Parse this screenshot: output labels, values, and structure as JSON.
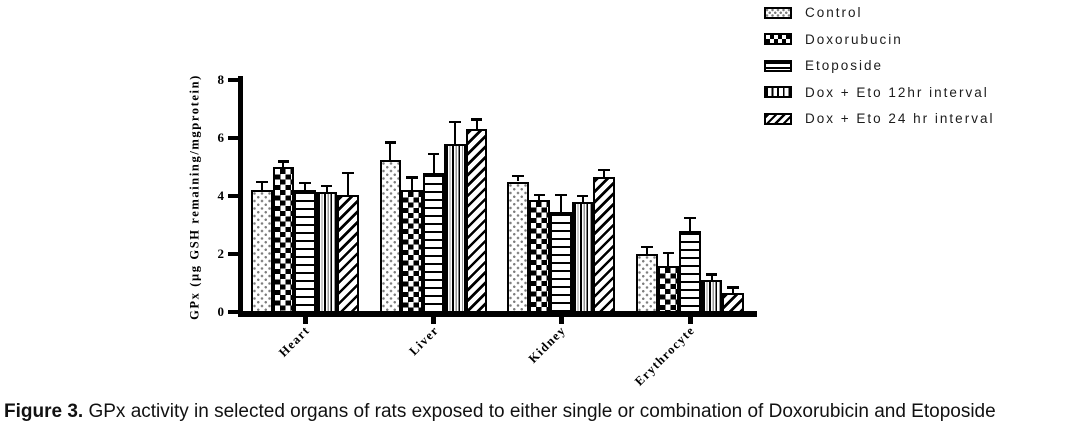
{
  "figure": {
    "caption_prefix": "Figure 3.",
    "caption_text": "GPx activity in selected organs of rats exposed to either single or combination of Doxorubicin and Etoposide"
  },
  "chart_data": {
    "type": "bar",
    "title": "",
    "xlabel": "",
    "ylabel": "GPx (µg GSH remaining/mgprotein)",
    "ylim": [
      0,
      8
    ],
    "yticks": [
      0,
      2,
      4,
      6,
      8
    ],
    "grid": false,
    "legend_position": "top-right",
    "error_bars": "upper",
    "categories": [
      "Heart",
      "Liver",
      "Kidney",
      "Erythrocyte"
    ],
    "series": [
      {
        "name": "Control",
        "pattern": "dots",
        "values": [
          4.2,
          5.25,
          4.5,
          2.0
        ],
        "errors": [
          0.3,
          0.6,
          0.2,
          0.25
        ]
      },
      {
        "name": "Doxorubucin",
        "pattern": "checker",
        "values": [
          5.0,
          4.2,
          3.85,
          1.6
        ],
        "errors": [
          0.2,
          0.45,
          0.2,
          0.45
        ]
      },
      {
        "name": "Etoposide",
        "pattern": "hlines",
        "values": [
          4.2,
          4.8,
          3.45,
          2.8
        ],
        "errors": [
          0.25,
          0.65,
          0.6,
          0.45
        ]
      },
      {
        "name": "Dox + Eto 12hr interval",
        "pattern": "vlines",
        "values": [
          4.15,
          5.8,
          3.8,
          1.1
        ],
        "errors": [
          0.2,
          0.75,
          0.2,
          0.2
        ]
      },
      {
        "name": "Dox + Eto 24 hr interval",
        "pattern": "diag",
        "values": [
          4.05,
          6.3,
          4.65,
          0.65
        ],
        "errors": [
          0.75,
          0.35,
          0.25,
          0.2
        ]
      }
    ]
  },
  "colors": {
    "ink": "#000000",
    "bar_fill": "#ffffff",
    "background": "#ffffff"
  }
}
